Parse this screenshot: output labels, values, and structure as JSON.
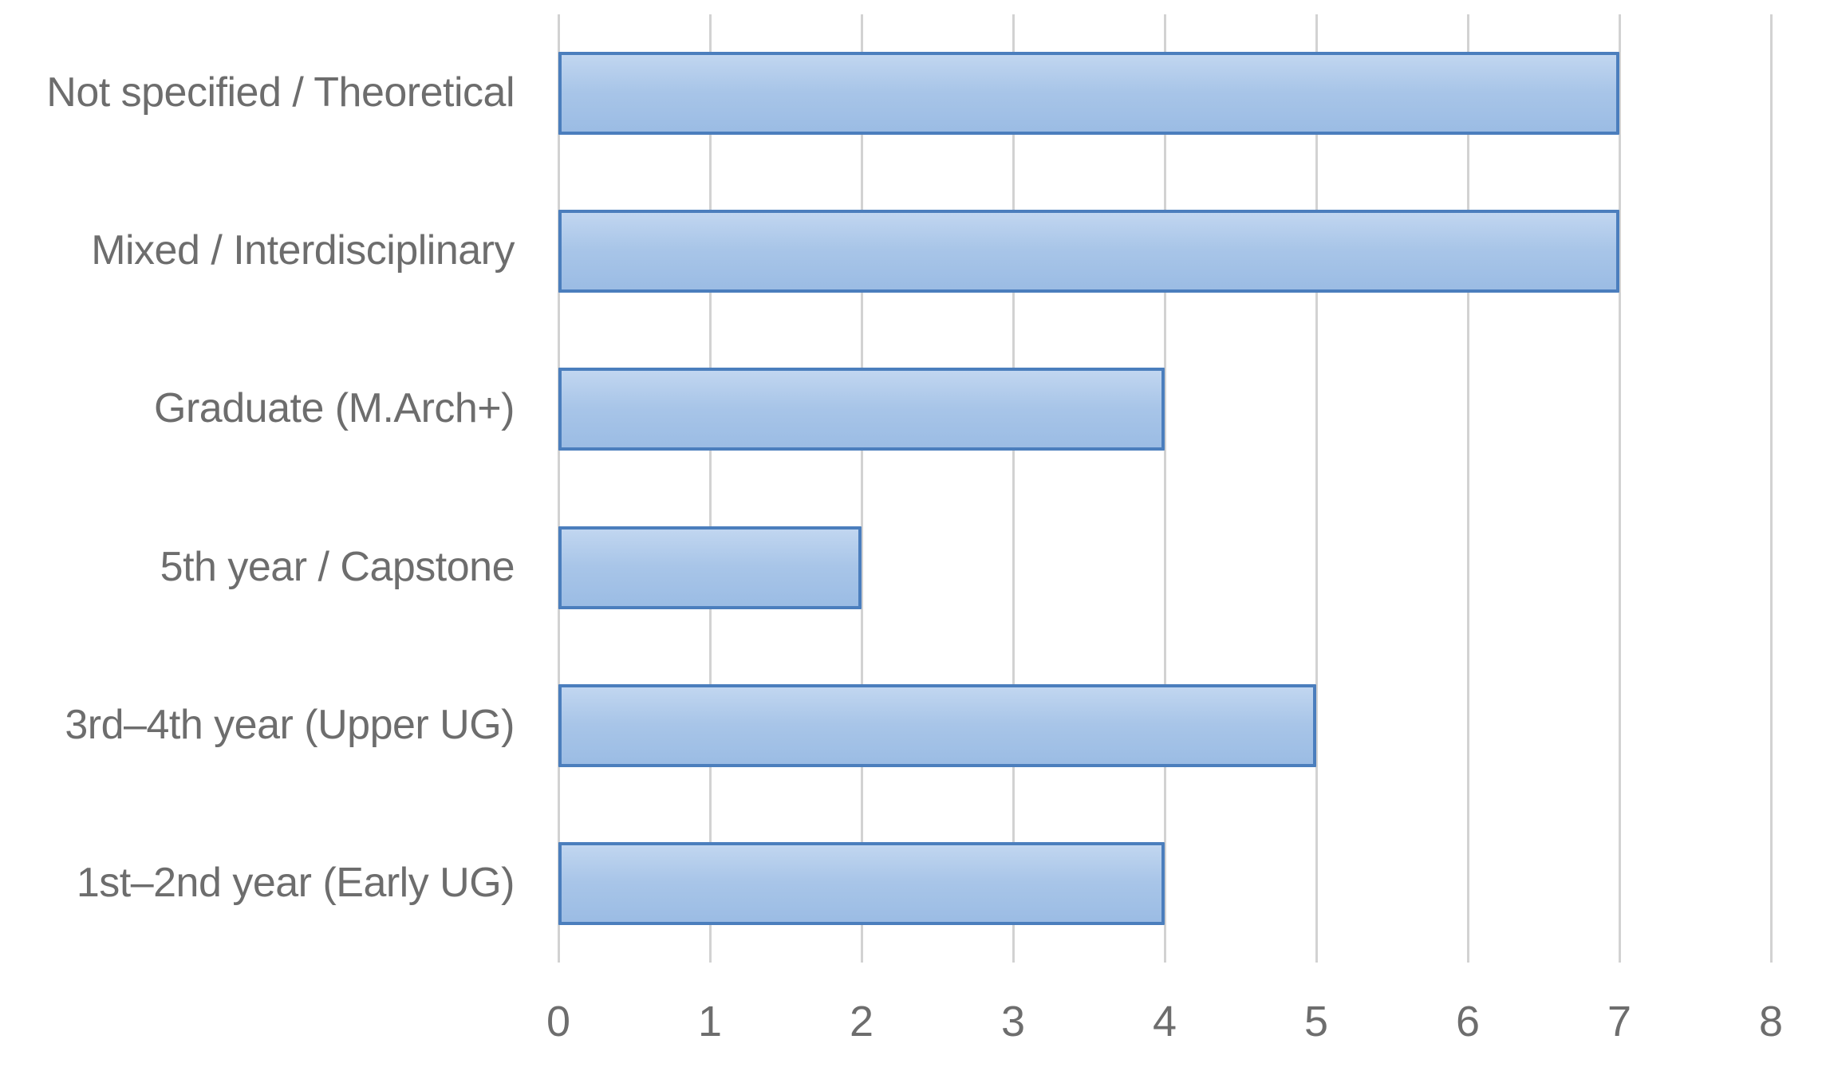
{
  "chart_data": {
    "type": "bar",
    "orientation": "horizontal",
    "title": "",
    "xlabel": "",
    "ylabel": "",
    "categories": [
      "Not specified / Theoretical",
      "Mixed / Interdisciplinary",
      "Graduate (M.Arch+)",
      "5th year / Capstone",
      "3rd–4th year (Upper UG)",
      "1st–2nd year (Early UG)"
    ],
    "values": [
      7,
      7,
      4,
      2,
      5,
      4
    ],
    "xlim": [
      0,
      8
    ],
    "x_ticks": [
      0,
      1,
      2,
      3,
      4,
      5,
      6,
      7,
      8
    ],
    "grid": "vertical-major-only",
    "legend": "none",
    "data_labels": "none",
    "colors": {
      "bar_fill_top": "#c1d6f0",
      "bar_fill_mid": "#a8c5e8",
      "bar_fill_bottom": "#9bbce4",
      "bar_border": "#4b7ebd",
      "gridline": "#d2d2d2",
      "axis_text": "#6d6d6d",
      "background": "#ffffff"
    }
  }
}
